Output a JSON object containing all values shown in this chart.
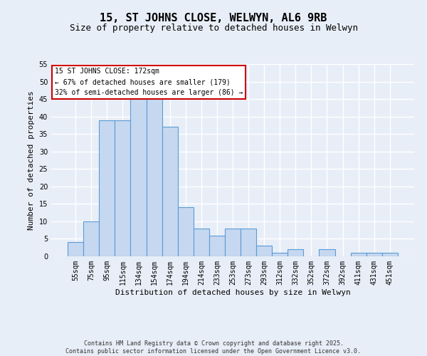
{
  "title": "15, ST JOHNS CLOSE, WELWYN, AL6 9RB",
  "subtitle": "Size of property relative to detached houses in Welwyn",
  "xlabel": "Distribution of detached houses by size in Welwyn",
  "ylabel": "Number of detached properties",
  "categories": [
    "55sqm",
    "75sqm",
    "95sqm",
    "115sqm",
    "134sqm",
    "154sqm",
    "174sqm",
    "194sqm",
    "214sqm",
    "233sqm",
    "253sqm",
    "273sqm",
    "293sqm",
    "312sqm",
    "332sqm",
    "352sqm",
    "372sqm",
    "392sqm",
    "411sqm",
    "431sqm",
    "451sqm"
  ],
  "values": [
    4,
    10,
    39,
    39,
    46,
    46,
    37,
    14,
    8,
    6,
    8,
    8,
    3,
    1,
    2,
    0,
    2,
    0,
    1,
    1,
    1
  ],
  "bar_color": "#c5d8f0",
  "bar_edge_color": "#5b9bd5",
  "background_color": "#e8eef7",
  "grid_color": "#ffffff",
  "ylim": [
    0,
    55
  ],
  "yticks": [
    0,
    5,
    10,
    15,
    20,
    25,
    30,
    35,
    40,
    45,
    50,
    55
  ],
  "annotation_box_text": "15 ST JOHNS CLOSE: 172sqm\n← 67% of detached houses are smaller (179)\n32% of semi-detached houses are larger (86) →",
  "annotation_box_color": "#cc0000",
  "footer_text": "Contains HM Land Registry data © Crown copyright and database right 2025.\nContains public sector information licensed under the Open Government Licence v3.0.",
  "title_fontsize": 11,
  "subtitle_fontsize": 9,
  "tick_label_fontsize": 7,
  "ylabel_fontsize": 8,
  "xlabel_fontsize": 8,
  "annot_fontsize": 7,
  "footer_fontsize": 6
}
